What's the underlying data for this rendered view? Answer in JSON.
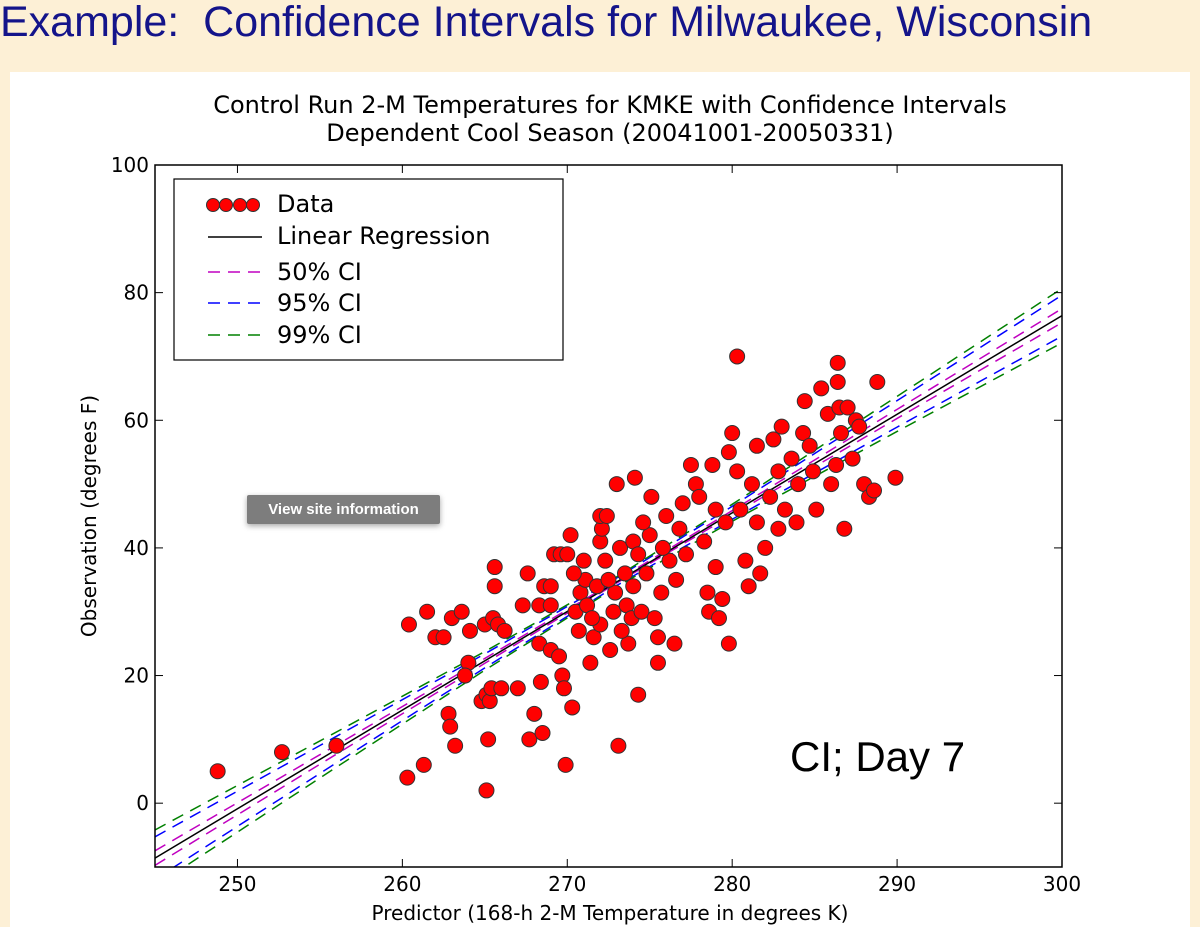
{
  "slide": {
    "title": "Example:  Confidence Intervals for Milwaukee, Wisconsin",
    "annotation": "CI; Day 7",
    "tooltip": "View site information",
    "background": "#fdf0d6",
    "title_color": "#14148a"
  },
  "chart_data": {
    "type": "scatter",
    "title": "Control Run 2-M Temperatures for KMKE with Confidence Intervals",
    "subtitle": "Dependent Cool Season (20041001-20050331)",
    "xlabel": "Predictor (168-h 2-M Temperature in degrees K)",
    "ylabel": "Observation (degrees F)",
    "xlim": [
      245,
      300
    ],
    "ylim": [
      -10,
      100
    ],
    "xticks": [
      "250",
      "260",
      "270",
      "280",
      "290",
      "300"
    ],
    "yticks": [
      "0",
      "20",
      "40",
      "60",
      "80",
      "100"
    ],
    "grid": false,
    "legend_position": "top-left",
    "legend": [
      "Data",
      "Linear Regression",
      "50% CI",
      "95% CI",
      "99% CI"
    ],
    "colors": {
      "data": "#ff0000",
      "regression": "#000000",
      "ci50": "#c000c0",
      "ci95": "#0000ff",
      "ci99": "#008000"
    },
    "data_points": [
      [
        248.8,
        5
      ],
      [
        252.7,
        8
      ],
      [
        256,
        9
      ],
      [
        260.3,
        4
      ],
      [
        261.3,
        6
      ],
      [
        260.4,
        28
      ],
      [
        261.5,
        30
      ],
      [
        262,
        26
      ],
      [
        262.5,
        26
      ],
      [
        263,
        29
      ],
      [
        263.6,
        30
      ],
      [
        264,
        22
      ],
      [
        263.8,
        20
      ],
      [
        264.1,
        27
      ],
      [
        262.8,
        14
      ],
      [
        262.9,
        12
      ],
      [
        263.2,
        9
      ],
      [
        265.2,
        10
      ],
      [
        264.8,
        16
      ],
      [
        265.1,
        17
      ],
      [
        265.3,
        16
      ],
      [
        265.4,
        18
      ],
      [
        266,
        18
      ],
      [
        265.1,
        2
      ],
      [
        265,
        28
      ],
      [
        265.5,
        29
      ],
      [
        265.6,
        34
      ],
      [
        265.6,
        37
      ],
      [
        265.8,
        28
      ],
      [
        266.2,
        27
      ],
      [
        267,
        18
      ],
      [
        267.6,
        36
      ],
      [
        267.3,
        31
      ],
      [
        268,
        14
      ],
      [
        267.7,
        10
      ],
      [
        268.5,
        11
      ],
      [
        268.4,
        19
      ],
      [
        268.3,
        25
      ],
      [
        268.6,
        34
      ],
      [
        269,
        34
      ],
      [
        268.3,
        31
      ],
      [
        269,
        31
      ],
      [
        269,
        24
      ],
      [
        269.5,
        23
      ],
      [
        269.2,
        39
      ],
      [
        269.6,
        39
      ],
      [
        270,
        39
      ],
      [
        270.2,
        42
      ],
      [
        269.7,
        20
      ],
      [
        269.8,
        18
      ],
      [
        269.9,
        6
      ],
      [
        270.3,
        15
      ],
      [
        270.5,
        30
      ],
      [
        270.8,
        33
      ],
      [
        271,
        38
      ],
      [
        271.1,
        35
      ],
      [
        271.4,
        22
      ],
      [
        271.6,
        26
      ],
      [
        272,
        28
      ],
      [
        272,
        41
      ],
      [
        272.1,
        43
      ],
      [
        272,
        45
      ],
      [
        272.4,
        45
      ],
      [
        272.3,
        38
      ],
      [
        272.6,
        24
      ],
      [
        272.8,
        30
      ],
      [
        272.9,
        33
      ],
      [
        273,
        50
      ],
      [
        273.1,
        9
      ],
      [
        273.2,
        40
      ],
      [
        273.5,
        36
      ],
      [
        273.6,
        31
      ],
      [
        273.7,
        25
      ],
      [
        273.9,
        29
      ],
      [
        274,
        34
      ],
      [
        274,
        41
      ],
      [
        274.1,
        51
      ],
      [
        274.3,
        39
      ],
      [
        274.3,
        17
      ],
      [
        274.5,
        30
      ],
      [
        274.8,
        36
      ],
      [
        275,
        42
      ],
      [
        275.1,
        48
      ],
      [
        275.3,
        29
      ],
      [
        275.5,
        22
      ],
      [
        275.5,
        26
      ],
      [
        275.7,
        33
      ],
      [
        276,
        45
      ],
      [
        276.2,
        38
      ],
      [
        276.5,
        25
      ],
      [
        276.6,
        35
      ],
      [
        276.8,
        43
      ],
      [
        277,
        47
      ],
      [
        277.5,
        53
      ],
      [
        277.2,
        39
      ],
      [
        277.8,
        50
      ],
      [
        278,
        48
      ],
      [
        278.3,
        41
      ],
      [
        278.5,
        33
      ],
      [
        278.6,
        30
      ],
      [
        278.8,
        53
      ],
      [
        279,
        46
      ],
      [
        279,
        37
      ],
      [
        279.2,
        29
      ],
      [
        279.4,
        32
      ],
      [
        279.6,
        44
      ],
      [
        279.8,
        25
      ],
      [
        279.8,
        55
      ],
      [
        280,
        58
      ],
      [
        280.3,
        70
      ],
      [
        280.3,
        52
      ],
      [
        280.5,
        46
      ],
      [
        280.8,
        38
      ],
      [
        281,
        34
      ],
      [
        281.2,
        50
      ],
      [
        281.5,
        56
      ],
      [
        281.5,
        44
      ],
      [
        281.7,
        36
      ],
      [
        282,
        40
      ],
      [
        282.3,
        48
      ],
      [
        282.5,
        57
      ],
      [
        282.8,
        52
      ],
      [
        282.8,
        43
      ],
      [
        283,
        59
      ],
      [
        283.2,
        46
      ],
      [
        283.6,
        54
      ],
      [
        283.9,
        44
      ],
      [
        284,
        50
      ],
      [
        284.3,
        58
      ],
      [
        284.4,
        63
      ],
      [
        284.7,
        56
      ],
      [
        284.9,
        52
      ],
      [
        285.1,
        46
      ],
      [
        285.4,
        65
      ],
      [
        285.8,
        61
      ],
      [
        286,
        50
      ],
      [
        286.3,
        53
      ],
      [
        286.4,
        69
      ],
      [
        286.4,
        66
      ],
      [
        286.5,
        62
      ],
      [
        286.6,
        58
      ],
      [
        287,
        62
      ],
      [
        287.3,
        54
      ],
      [
        287.5,
        60
      ],
      [
        286.8,
        43
      ],
      [
        287.7,
        59
      ],
      [
        288,
        50
      ],
      [
        288.3,
        48
      ],
      [
        288.6,
        49
      ],
      [
        288.8,
        66
      ],
      [
        289.9,
        51
      ],
      [
        270.4,
        36
      ],
      [
        271.2,
        31
      ],
      [
        271.8,
        34
      ],
      [
        272.5,
        35
      ],
      [
        273.3,
        27
      ],
      [
        274.6,
        44
      ],
      [
        275.8,
        40
      ],
      [
        270.7,
        27
      ],
      [
        271.5,
        29
      ]
    ],
    "regression": {
      "x": [
        245,
        300
      ],
      "y": [
        -8.6,
        76.4
      ]
    },
    "ci_x": [
      245,
      255,
      265,
      273,
      280,
      290,
      300
    ],
    "ci_bands": [
      {
        "name": "50% CI",
        "lower": [
          -9.74,
          6.1,
          21.92,
          34.5,
          45.16,
          60.29,
          75.3
        ],
        "upper": [
          -7.46,
          7.6,
          22.68,
          34.9,
          45.84,
          61.71,
          77.5
        ]
      },
      {
        "name": "95% CI",
        "lower": [
          -11.93,
          4.66,
          21.2,
          34.11,
          44.49,
          58.93,
          73.19
        ],
        "upper": [
          -5.27,
          9.04,
          23.4,
          35.29,
          46.51,
          63.07,
          79.61
        ]
      },
      {
        "name": "99% CI",
        "lower": [
          -13.01,
          3.95,
          20.84,
          33.92,
          44.17,
          58.25,
          72.14
        ],
        "upper": [
          -4.19,
          9.75,
          23.76,
          35.48,
          46.83,
          63.75,
          80.66
        ]
      }
    ]
  }
}
